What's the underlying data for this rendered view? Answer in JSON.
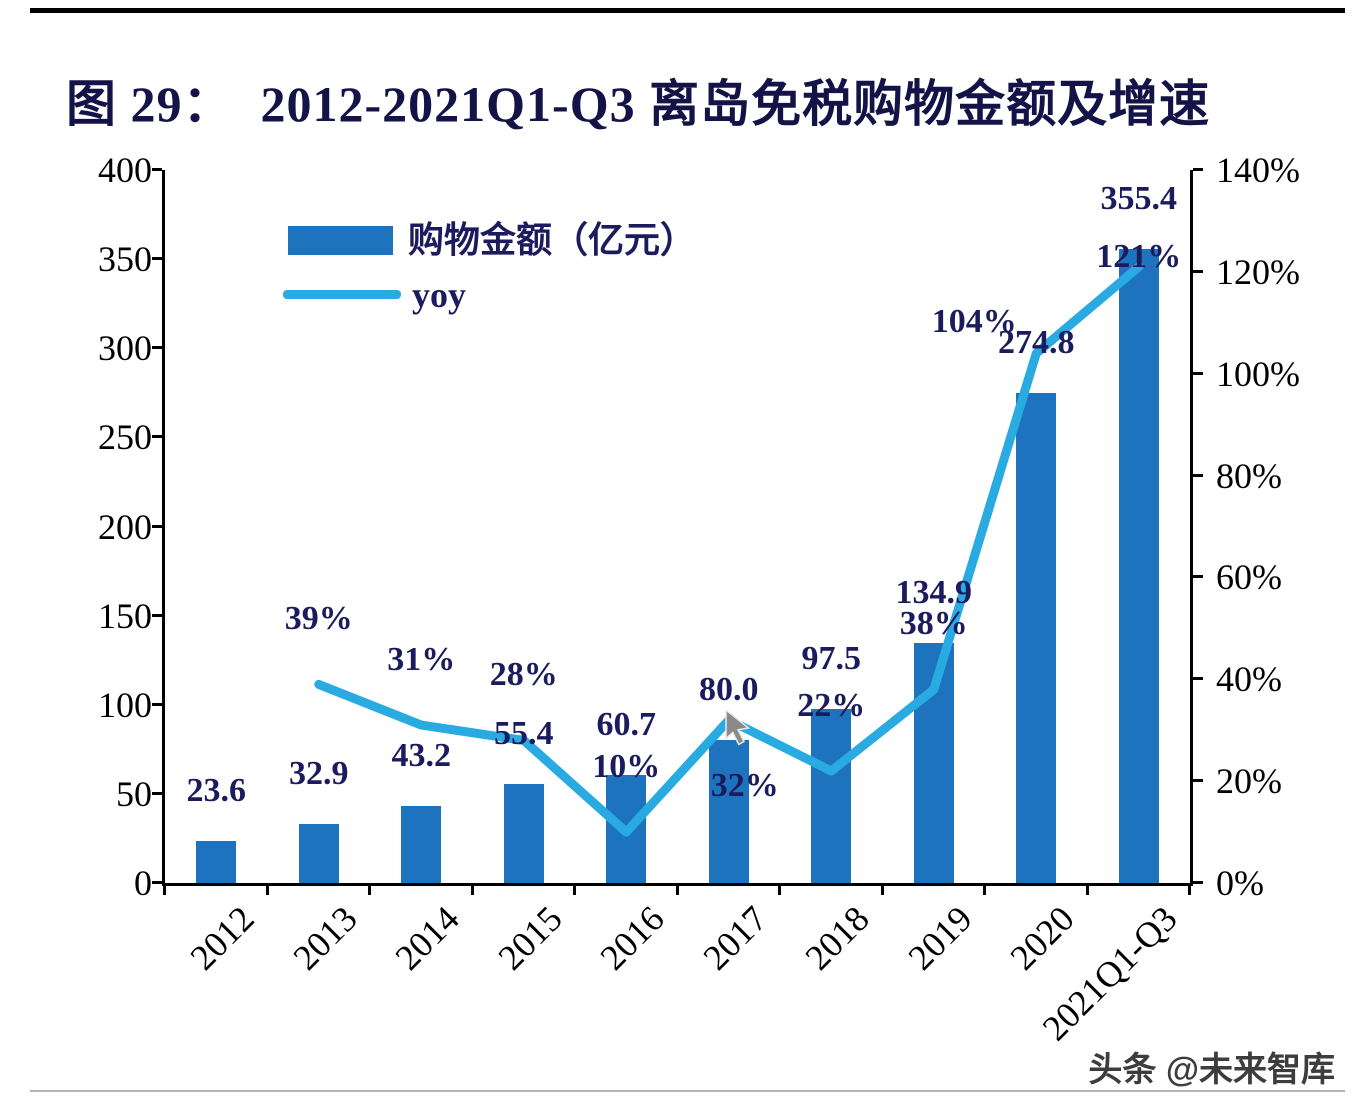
{
  "title": "图 29：  2012-2021Q1-Q3 离岛免税购物金额及增速",
  "watermark": "头条 @未来智库",
  "legend": {
    "bar_label": "购物金额（亿元）",
    "line_label": "yoy"
  },
  "chart_data": {
    "type": "bar",
    "title": "图 29：2012-2021Q1-Q3 离岛免税购物金额及增速",
    "categories": [
      "2012",
      "2013",
      "2014",
      "2015",
      "2016",
      "2017",
      "2018",
      "2019",
      "2020",
      "2021Q1-Q3"
    ],
    "series": [
      {
        "name": "购物金额（亿元）",
        "type": "bar",
        "axis": "left",
        "values": [
          23.6,
          32.9,
          43.2,
          55.4,
          60.7,
          80.0,
          97.5,
          134.9,
          274.8,
          355.4
        ]
      },
      {
        "name": "yoy",
        "type": "line",
        "axis": "right",
        "unit": "%",
        "values": [
          null,
          39,
          31,
          28,
          10,
          32,
          22,
          38,
          104,
          121
        ]
      }
    ],
    "left_axis": {
      "min": 0,
      "max": 400,
      "step": 50,
      "ticks": [
        "400",
        "350",
        "300",
        "250",
        "200",
        "150",
        "100",
        "50",
        "0"
      ]
    },
    "right_axis": {
      "min": 0,
      "max": 140,
      "step": 20,
      "unit": "%",
      "ticks": [
        "140%",
        "120%",
        "100%",
        "80%",
        "60%",
        "40%",
        "20%",
        "0%"
      ]
    },
    "bar_labels": [
      "23.6",
      "32.9",
      "43.2",
      "55.4",
      "60.7",
      "80.0",
      "97.5",
      "134.9",
      "274.8",
      "355.4"
    ],
    "line_labels": [
      null,
      "39%",
      "31%",
      "28%",
      "10%",
      "32%",
      "22%",
      "38%",
      "104%",
      "121%"
    ],
    "legend_position": "top-left-inside",
    "grid": false,
    "colors": {
      "bar": "#1e73be",
      "line": "#29abe2",
      "label": "#1b1b5e",
      "axis_text": "#000000"
    }
  }
}
